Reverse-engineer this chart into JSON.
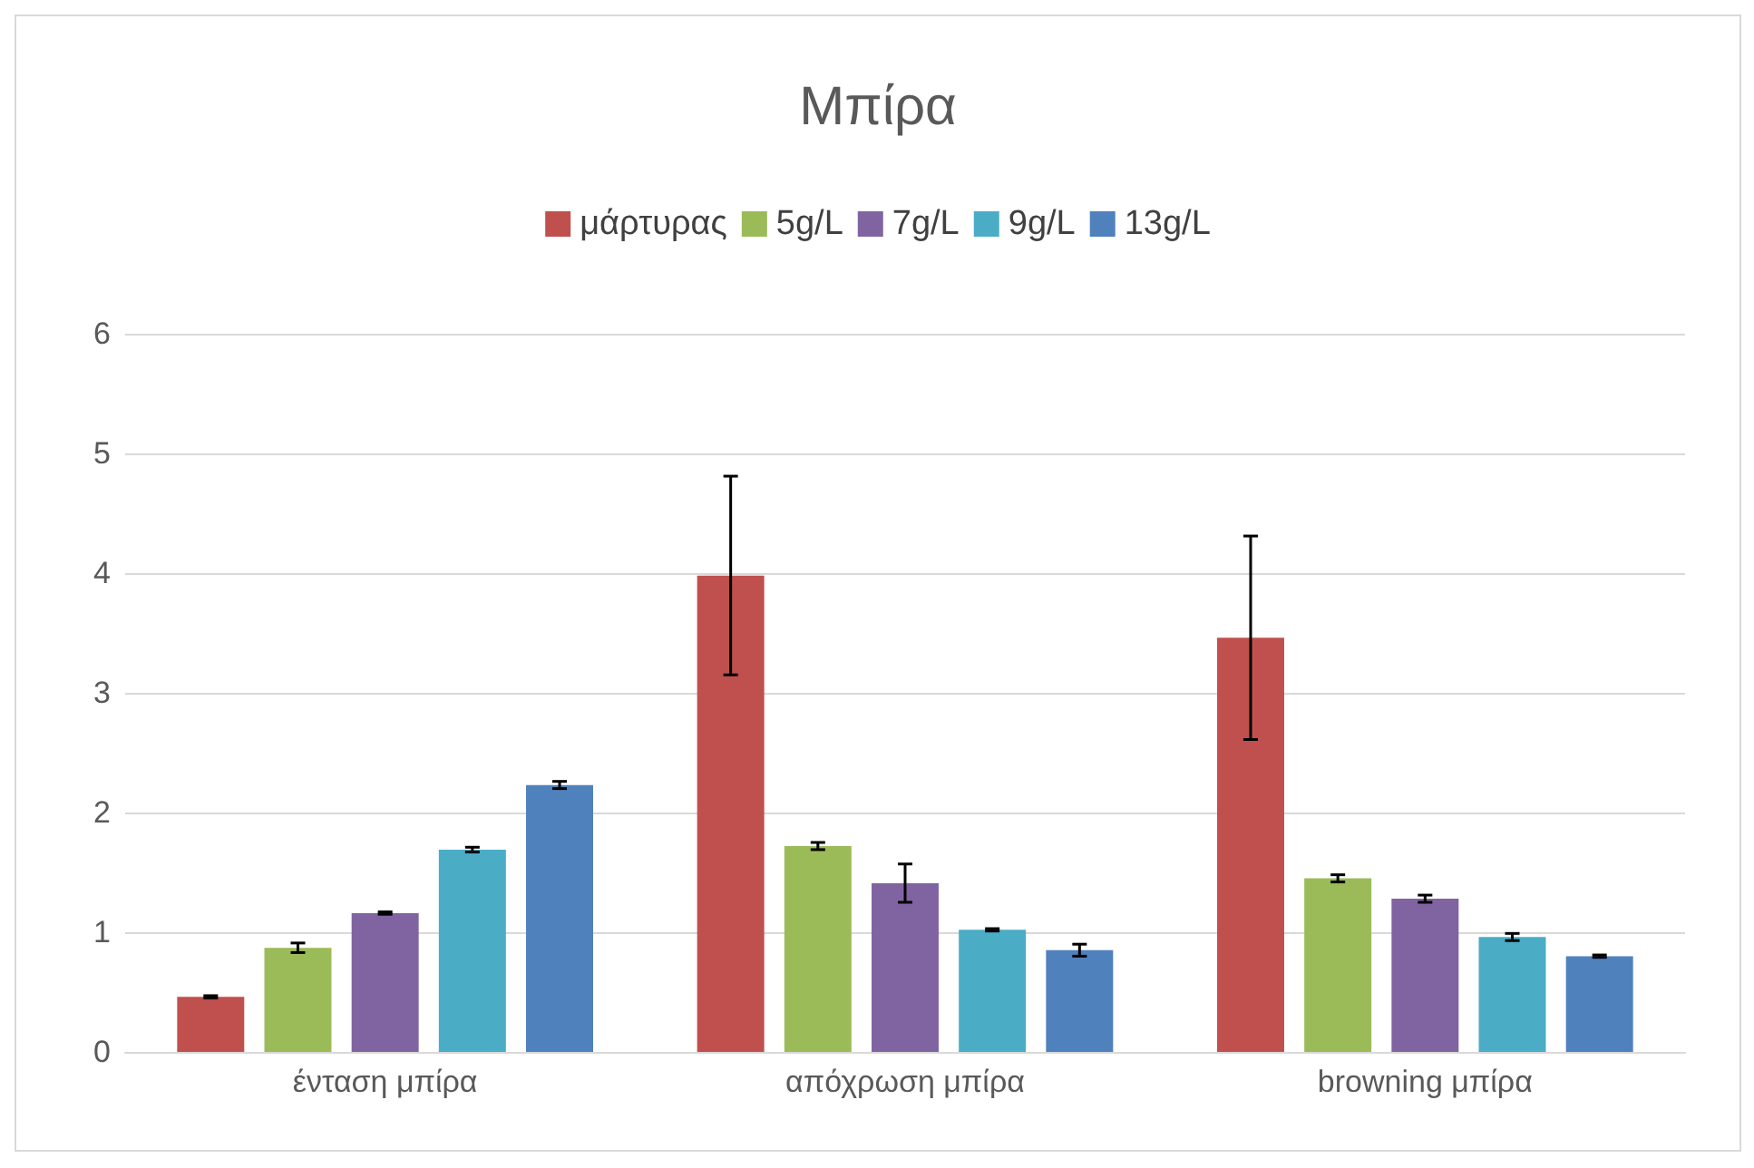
{
  "chart_data": {
    "type": "bar",
    "title": "Μπίρα",
    "categories": [
      "ένταση μπίρα",
      "απόχρωση μπίρα",
      "browning μπίρα"
    ],
    "series": [
      {
        "name": "μάρτυρας",
        "color": "#c0504d",
        "values": [
          0.46,
          3.98,
          3.46
        ],
        "errors": [
          0.01,
          0.83,
          0.85
        ]
      },
      {
        "name": "5g/L",
        "color": "#9bbb59",
        "values": [
          0.87,
          1.72,
          1.45
        ],
        "errors": [
          0.04,
          0.03,
          0.03
        ]
      },
      {
        "name": "7g/L",
        "color": "#8064a2",
        "values": [
          1.16,
          1.41,
          1.28
        ],
        "errors": [
          0.01,
          0.16,
          0.03
        ]
      },
      {
        "name": "9g/L",
        "color": "#4bacc6",
        "values": [
          1.69,
          1.02,
          0.96
        ],
        "errors": [
          0.02,
          0.01,
          0.03
        ]
      },
      {
        "name": "13g/L",
        "color": "#4f81bd",
        "values": [
          2.23,
          0.85,
          0.8
        ],
        "errors": [
          0.03,
          0.05,
          0.01
        ]
      }
    ],
    "ylim": [
      0,
      6
    ],
    "yticks": [
      0,
      1,
      2,
      3,
      4,
      5,
      6
    ],
    "grid": "y",
    "legend": "top"
  }
}
